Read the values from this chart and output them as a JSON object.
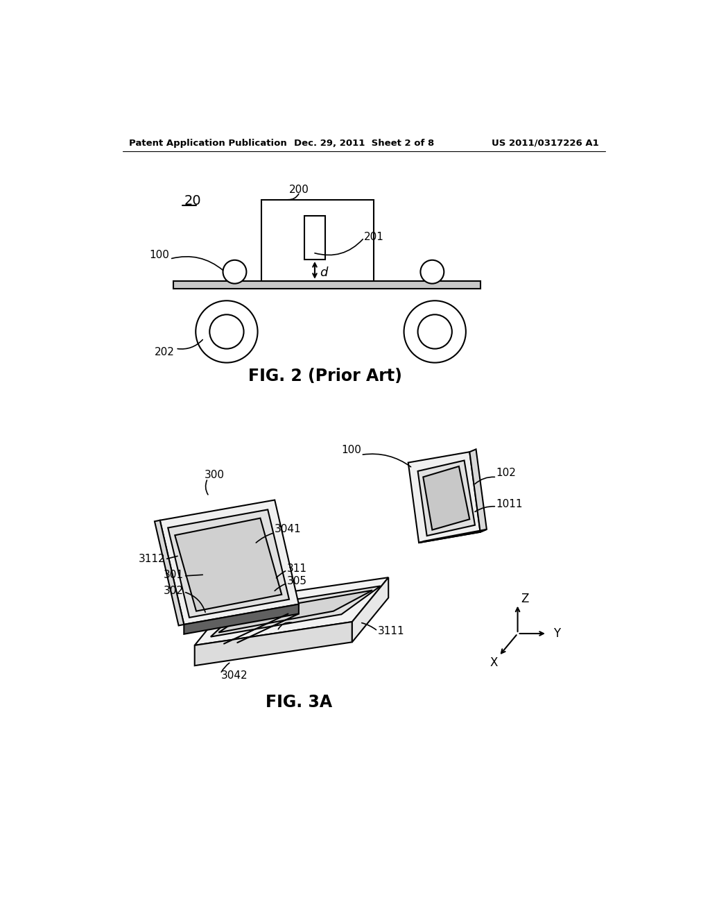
{
  "background_color": "#ffffff",
  "header_left": "Patent Application Publication",
  "header_center": "Dec. 29, 2011  Sheet 2 of 8",
  "header_right": "US 2011/0317226 A1",
  "fig2_caption": "FIG. 2 (Prior Art)",
  "fig3a_caption": "FIG. 3A",
  "fig2_label": "20",
  "label_200": "200",
  "label_201": "201",
  "label_202": "202",
  "label_100_fig2": "100",
  "label_d": "d",
  "label_300": "300",
  "label_100_fig3": "100",
  "label_102": "102",
  "label_1011": "1011",
  "label_3041": "3041",
  "label_3112": "3112",
  "label_311": "311",
  "label_305": "305",
  "label_301": "301",
  "label_302": "302",
  "label_3042": "3042",
  "label_3111": "3111",
  "line_color": "#000000",
  "text_color": "#000000"
}
